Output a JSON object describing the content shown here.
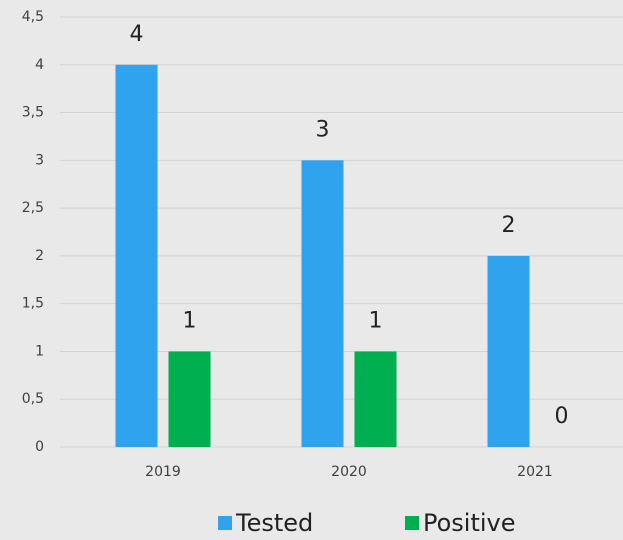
{
  "chart_data": {
    "type": "bar",
    "categories": [
      "2019",
      "2020",
      "2021"
    ],
    "series": [
      {
        "name": "Tested",
        "color": "#2fa3ee",
        "values": [
          4,
          3,
          2
        ]
      },
      {
        "name": "Positive",
        "color": "#00b050",
        "values": [
          1,
          1,
          0
        ]
      }
    ],
    "ylim": [
      0,
      4.5
    ],
    "yticks": [
      0,
      {
        "value": 0.5,
        "label": "0,5"
      },
      1,
      {
        "value": 1.5,
        "label": "1,5"
      },
      2,
      {
        "value": 2.5,
        "label": "2,5"
      },
      3,
      {
        "value": 3.5,
        "label": "3,5"
      },
      4,
      {
        "value": 4.5,
        "label": "4,5"
      }
    ],
    "grid": true,
    "legend": "bottom"
  }
}
